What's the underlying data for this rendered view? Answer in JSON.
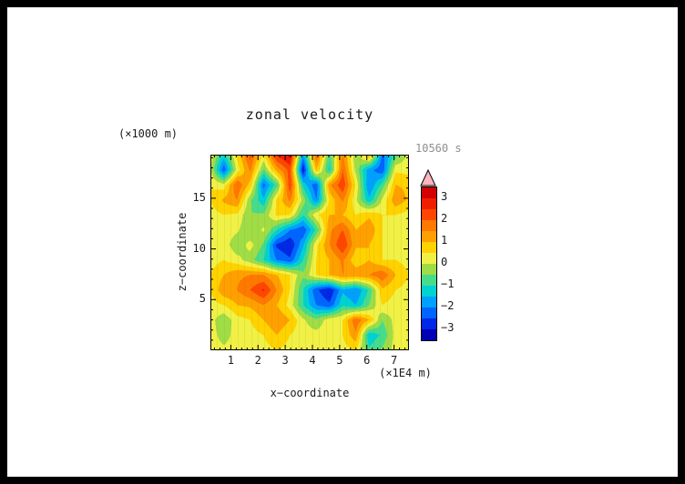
{
  "page": {
    "border_color": "#000000",
    "background": "#ffffff"
  },
  "chart_data": {
    "type": "heatmap",
    "title": "zonal velocity",
    "time_label": "10560 s",
    "xlabel": "x−coordinate",
    "ylabel": "z−coordinate",
    "x_unit_label": "(×1E4 m)",
    "y_unit_label": "(×1000 m)",
    "x_range": [
      0.25,
      7.55
    ],
    "z_range": [
      0,
      19.3
    ],
    "x_ticks": {
      "labels": [
        "1",
        "2",
        "3",
        "4",
        "5",
        "6",
        "7"
      ],
      "values": [
        1,
        2,
        3,
        4,
        5,
        6,
        7
      ]
    },
    "z_ticks": {
      "labels": [
        "5",
        "10",
        "15"
      ],
      "values": [
        5,
        10,
        15
      ]
    },
    "colorbar_ticks": {
      "labels": [
        "3",
        "2",
        "1",
        "0",
        "−1",
        "−2",
        "−3"
      ],
      "values": [
        3,
        2,
        1,
        0,
        -1,
        -2,
        -3
      ]
    },
    "contour_levels": [
      -3.5,
      -3,
      -2.5,
      -2,
      -1.5,
      -1,
      -0.5,
      0,
      0.5,
      1,
      1.5,
      2,
      2.5,
      3,
      3.5
    ],
    "band_colors": [
      "#0000b4",
      "#0028e6",
      "#0064ff",
      "#00a0ff",
      "#00d2d2",
      "#46dc8c",
      "#a0dc46",
      "#f0f046",
      "#ffd200",
      "#ffa000",
      "#ff7800",
      "#ff4600",
      "#f01e00",
      "#d20000"
    ],
    "over_color": "#ffb4be",
    "grid": {
      "rows_top_to_bottom": true,
      "z_of_first_row": 19.3,
      "z_of_last_row": 0,
      "values": [
        [
          0.3,
          -1.2,
          0.6,
          2.2,
          0.4,
          2.6,
          3.2,
          -1.8,
          2.0,
          -0.8,
          1.6,
          -0.4,
          1.2,
          -2.2,
          -0.8,
          0.2
        ],
        [
          0.1,
          -2.4,
          0.2,
          1.6,
          -0.6,
          1.2,
          2.2,
          -3.0,
          1.0,
          -1.2,
          2.0,
          -0.2,
          -1.8,
          -2.4,
          0.4,
          0.3
        ],
        [
          0.5,
          0.2,
          2.0,
          0.8,
          -2.2,
          -0.8,
          2.4,
          -1.2,
          -2.4,
          1.4,
          2.4,
          0.4,
          -2.0,
          -0.8,
          1.0,
          0.9
        ],
        [
          0.5,
          1.1,
          1.5,
          -0.4,
          -1.4,
          0.6,
          1.6,
          -0.2,
          -2.0,
          0.6,
          1.6,
          0.1,
          -1.4,
          0.1,
          1.4,
          0.9
        ],
        [
          0.3,
          0.5,
          0.4,
          -0.5,
          -0.4,
          0.6,
          0.5,
          -1.0,
          0.4,
          1.0,
          1.0,
          0.5,
          0.9,
          0.5,
          0.5,
          0.3
        ],
        [
          0.2,
          0.3,
          0.1,
          -0.5,
          0.1,
          -1.0,
          -2.0,
          -2.4,
          -0.9,
          1.4,
          2.0,
          1.0,
          1.4,
          0.5,
          0.3,
          0.2
        ],
        [
          0.3,
          0.3,
          -0.4,
          0.2,
          -0.6,
          -2.6,
          -3.0,
          -1.6,
          0.4,
          1.5,
          2.5,
          1.1,
          1.0,
          0.5,
          0.3,
          0.2
        ],
        [
          0.3,
          0.5,
          0.2,
          -0.3,
          -1.0,
          -2.0,
          -2.4,
          -1.0,
          0.5,
          1.0,
          1.6,
          0.6,
          1.0,
          0.5,
          0.5,
          0.3
        ],
        [
          0.5,
          1.0,
          1.4,
          1.5,
          1.5,
          1.0,
          0.5,
          -0.4,
          0.5,
          1.0,
          1.5,
          1.4,
          1.5,
          1.9,
          1.0,
          0.5
        ],
        [
          0.5,
          1.4,
          1.5,
          2.0,
          2.6,
          1.5,
          0.5,
          -1.0,
          -2.4,
          -3.0,
          -1.6,
          -2.0,
          -0.9,
          0.9,
          0.5,
          0.3
        ],
        [
          0.3,
          0.5,
          1.0,
          1.1,
          1.5,
          1.0,
          0.3,
          -1.0,
          -2.0,
          -2.4,
          -1.1,
          -1.5,
          -0.5,
          0.5,
          0.3,
          0.2
        ],
        [
          0.2,
          -0.4,
          0.3,
          0.5,
          1.0,
          1.5,
          1.0,
          0.1,
          -0.4,
          0.3,
          0.5,
          1.9,
          1.0,
          -0.5,
          0.2,
          0.2
        ],
        [
          0.2,
          -0.2,
          0.2,
          0.3,
          0.5,
          1.0,
          0.5,
          0.2,
          0.2,
          0.3,
          0.5,
          1.4,
          -1.4,
          -0.9,
          0.2,
          0.2
        ],
        [
          0.2,
          0.1,
          0.2,
          0.2,
          0.3,
          0.5,
          0.3,
          0.2,
          0.2,
          0.2,
          0.3,
          0.5,
          -0.9,
          -0.4,
          0.2,
          0.2
        ]
      ]
    }
  }
}
